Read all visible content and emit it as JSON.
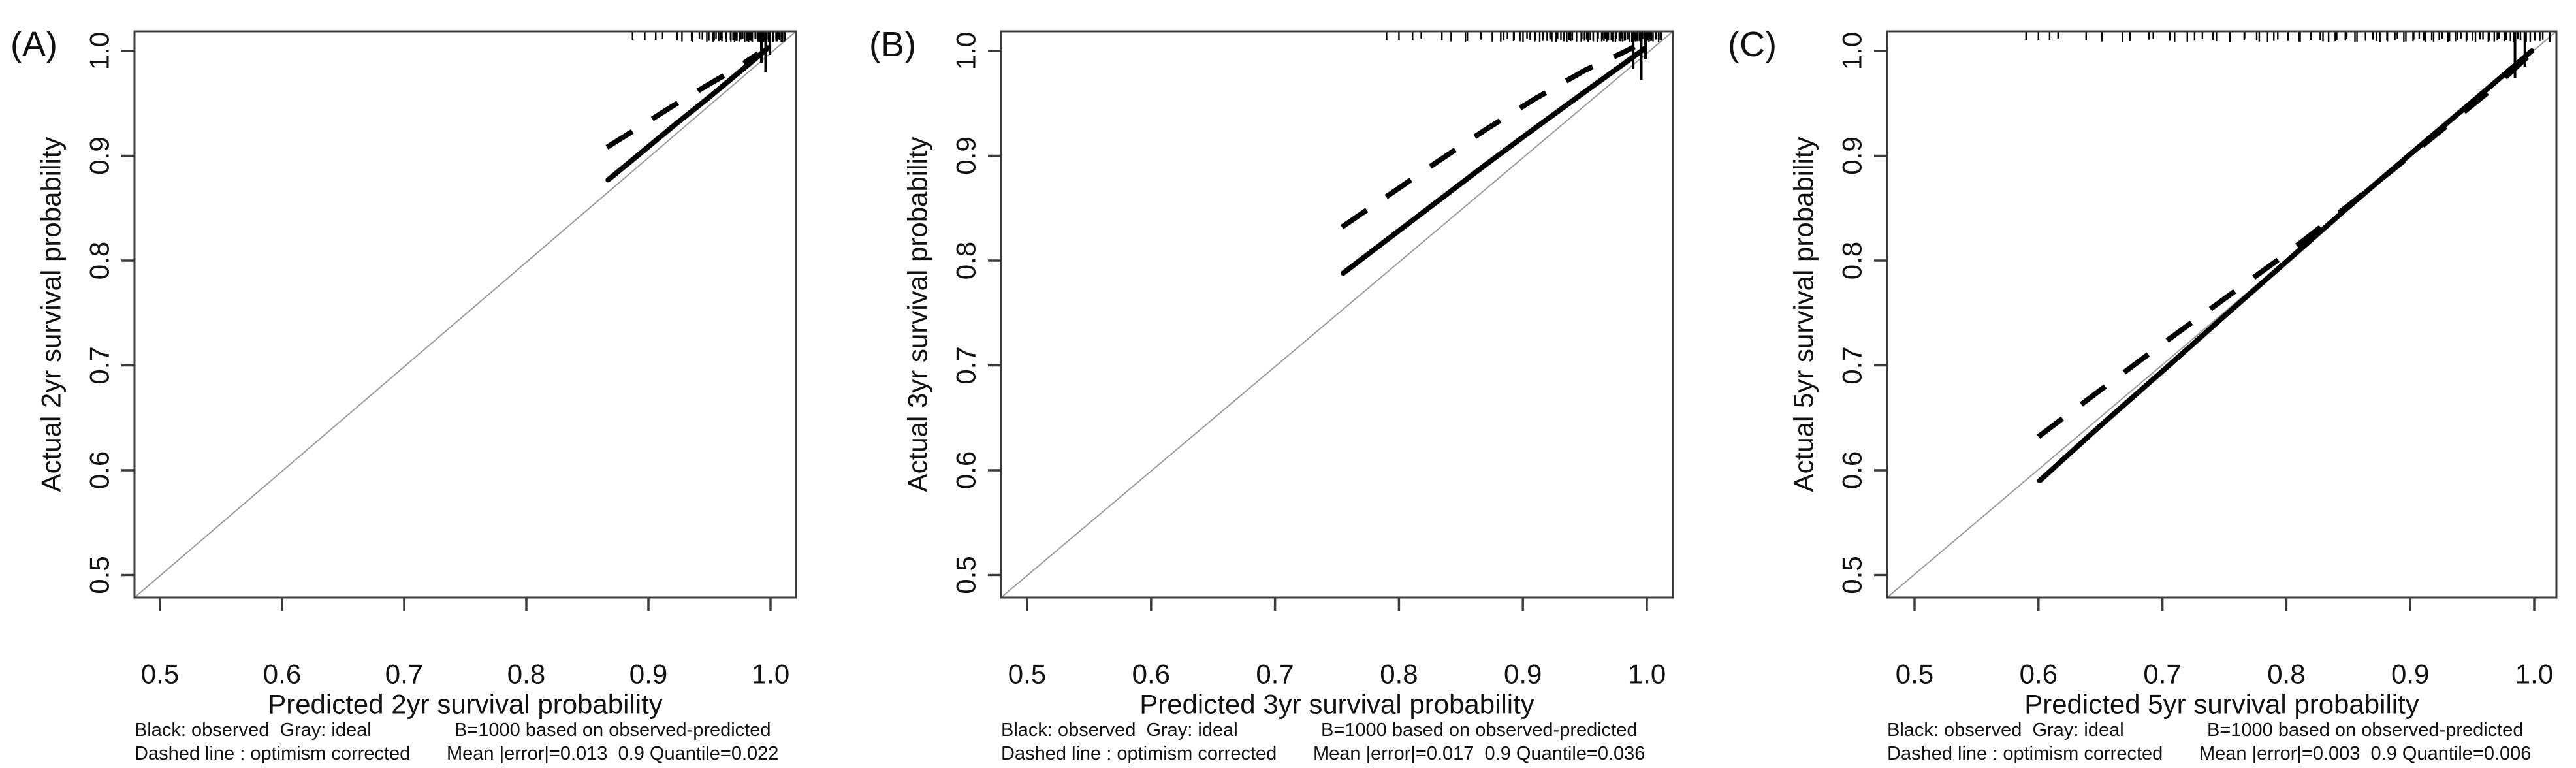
{
  "figure_background": "#ffffff",
  "colors": {
    "observed_curve": "#000000",
    "optimism_dashed": "#000000",
    "ideal_line": "#9b9b9b",
    "axis_frame": "#3b3b3b",
    "text": "#111111"
  },
  "chart_data": [
    {
      "type": "line",
      "panel_label": "(A)",
      "xlabel": "Predicted 2yr survival probability",
      "ylabel": "Actual 2yr survival probability",
      "x_ticks": [
        "0.5",
        "0.6",
        "0.7",
        "0.8",
        "0.9",
        "1.0"
      ],
      "y_ticks": [
        "0.5",
        "0.6",
        "0.7",
        "0.8",
        "0.9",
        "1.0"
      ],
      "xlim": [
        0.48,
        1.02
      ],
      "ylim": [
        0.48,
        1.02
      ],
      "grid": false,
      "legend_position": "below",
      "series": [
        {
          "name": "observed (black solid)",
          "style": "solid",
          "points": [
            [
              0.867,
              0.877
            ],
            [
              0.89,
              0.899
            ],
            [
              0.92,
              0.928
            ],
            [
              0.95,
              0.956
            ],
            [
              0.97,
              0.9755
            ],
            [
              0.985,
              0.99
            ],
            [
              0.998,
              1.003
            ]
          ]
        },
        {
          "name": "optimism corrected (dashed)",
          "style": "dashed",
          "points": [
            [
              0.866,
              0.908
            ],
            [
              0.89,
              0.9255
            ],
            [
              0.92,
              0.9475
            ],
            [
              0.95,
              0.9685
            ],
            [
              0.97,
              0.982
            ],
            [
              0.99,
              0.9975
            ]
          ]
        },
        {
          "name": "ideal (gray)",
          "style": "thin-gray",
          "points": [
            [
              0.48,
              0.48
            ],
            [
              1.02,
              1.02
            ]
          ]
        }
      ],
      "rug": {
        "from": 0.885,
        "to": 1.011,
        "count": 72,
        "skew": 3.2,
        "extras": [
          0.887,
          0.897,
          0.906
        ],
        "tall": [
          {
            "x": 0.9925,
            "len": 48
          },
          {
            "x": 0.996,
            "len": 62
          },
          {
            "x": 0.9995,
            "len": 36
          }
        ]
      },
      "caption_line1_left": "Black: observed  Gray: ideal",
      "caption_line1_right": "B=1000 based on observed-predicted",
      "caption_line2_left": "Dashed line : optimism corrected",
      "caption_line2_right": "Mean |error|=0.013  0.9 Quantile=0.022",
      "stats": {
        "B": 1000,
        "mean_abs_error": 0.013,
        "quantile_0_9": 0.022
      }
    },
    {
      "type": "line",
      "panel_label": "(B)",
      "xlabel": "Predicted 3yr survival probability",
      "ylabel": "Actual 3yr survival probability",
      "x_ticks": [
        "0.5",
        "0.6",
        "0.7",
        "0.8",
        "0.9",
        "1.0"
      ],
      "y_ticks": [
        "0.5",
        "0.6",
        "0.7",
        "0.8",
        "0.9",
        "1.0"
      ],
      "xlim": [
        0.48,
        1.02
      ],
      "ylim": [
        0.48,
        1.02
      ],
      "grid": false,
      "legend_position": "below",
      "series": [
        {
          "name": "observed (black solid)",
          "style": "solid",
          "points": [
            [
              0.755,
              0.788
            ],
            [
              0.79,
              0.8195
            ],
            [
              0.83,
              0.8555
            ],
            [
              0.87,
              0.8915
            ],
            [
              0.91,
              0.9265
            ],
            [
              0.95,
              0.961
            ],
            [
              0.98,
              0.9865
            ],
            [
              0.998,
              1.002
            ]
          ]
        },
        {
          "name": "optimism corrected (dashed)",
          "style": "dashed",
          "points": [
            [
              0.754,
              0.832
            ],
            [
              0.79,
              0.861
            ],
            [
              0.83,
              0.8935
            ],
            [
              0.87,
              0.925
            ],
            [
              0.91,
              0.9545
            ],
            [
              0.95,
              0.9815
            ],
            [
              0.98,
              0.998
            ],
            [
              0.99,
              1.004
            ]
          ]
        },
        {
          "name": "ideal (gray)",
          "style": "thin-gray",
          "points": [
            [
              0.48,
              0.48
            ],
            [
              1.02,
              1.02
            ]
          ]
        }
      ],
      "rug": {
        "from": 0.788,
        "to": 1.011,
        "count": 92,
        "skew": 2.6,
        "extras": [
          0.79,
          0.8,
          0.811
        ],
        "tall": [
          {
            "x": 0.989,
            "len": 58
          },
          {
            "x": 0.9955,
            "len": 74
          },
          {
            "x": 0.999,
            "len": 42
          }
        ]
      },
      "caption_line1_left": "Black: observed  Gray: ideal",
      "caption_line1_right": "B=1000 based on observed-predicted",
      "caption_line2_left": "Dashed line : optimism corrected",
      "caption_line2_right": "Mean |error|=0.017  0.9 Quantile=0.036",
      "stats": {
        "B": 1000,
        "mean_abs_error": 0.017,
        "quantile_0_9": 0.036
      }
    },
    {
      "type": "line",
      "panel_label": "(C)",
      "xlabel": "Predicted 5yr survival probability",
      "ylabel": "Actual 5yr survival probability",
      "x_ticks": [
        "0.5",
        "0.6",
        "0.7",
        "0.8",
        "0.9",
        "1.0"
      ],
      "y_ticks": [
        "0.5",
        "0.6",
        "0.7",
        "0.8",
        "0.9",
        "1.0"
      ],
      "xlim": [
        0.48,
        1.02
      ],
      "ylim": [
        0.48,
        1.02
      ],
      "grid": false,
      "legend_position": "below",
      "series": [
        {
          "name": "observed (black solid)",
          "style": "solid",
          "points": [
            [
              0.601,
              0.59
            ],
            [
              0.65,
              0.6425
            ],
            [
              0.7,
              0.6945
            ],
            [
              0.75,
              0.747
            ],
            [
              0.8,
              0.799
            ],
            [
              0.85,
              0.851
            ],
            [
              0.9,
              0.9015
            ],
            [
              0.95,
              0.9515
            ],
            [
              0.998,
              1.0
            ]
          ]
        },
        {
          "name": "optimism corrected (dashed)",
          "style": "dashed",
          "points": [
            [
              0.6,
              0.632
            ],
            [
              0.65,
              0.6765
            ],
            [
              0.7,
              0.7205
            ],
            [
              0.75,
              0.7635
            ],
            [
              0.8,
              0.8065
            ],
            [
              0.85,
              0.8525
            ],
            [
              0.89,
              0.8905
            ],
            [
              0.93,
              0.929
            ],
            [
              0.97,
              0.9675
            ],
            [
              0.998,
              0.998
            ]
          ]
        },
        {
          "name": "ideal (gray)",
          "style": "thin-gray",
          "points": [
            [
              0.48,
              0.48
            ],
            [
              1.02,
              1.02
            ]
          ]
        }
      ],
      "rug": {
        "from": 0.588,
        "to": 1.011,
        "count": 88,
        "skew": 1.9,
        "extras": [
          0.59,
          0.6,
          0.609
        ],
        "tall": [
          {
            "x": 0.9845,
            "len": 72
          },
          {
            "x": 0.9925,
            "len": 54
          }
        ]
      },
      "caption_line1_left": "Black: observed  Gray: ideal",
      "caption_line1_right": "B=1000 based on observed-predicted",
      "caption_line2_left": "Dashed line : optimism corrected",
      "caption_line2_right": "Mean |error|=0.003  0.9 Quantile=0.006",
      "stats": {
        "B": 1000,
        "mean_abs_error": 0.003,
        "quantile_0_9": 0.006
      }
    }
  ]
}
